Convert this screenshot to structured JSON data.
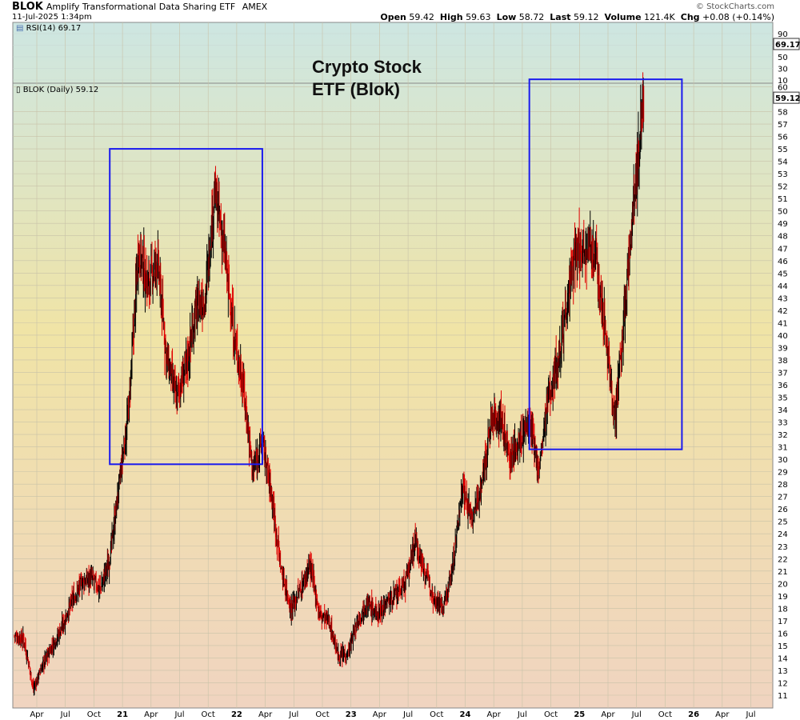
{
  "header": {
    "symbol": "BLOK",
    "name": "Amplify Transformational Data Sharing ETF",
    "exchange": "AMEX",
    "datetime": "11-Jul-2025 1:34pm",
    "brand": "© StockCharts.com",
    "open_label": "Open",
    "open": "59.42",
    "high_label": "High",
    "high": "59.63",
    "low_label": "Low",
    "low": "58.72",
    "last_label": "Last",
    "last": "59.12",
    "volume_label": "Volume",
    "volume": "121.4K",
    "chg_label": "Chg",
    "chg": "+0.08 (+0.14%)"
  },
  "indicators": {
    "rsi_label": "RSI(14) 69.17",
    "rsi_value": "69.17",
    "price_label": "BLOK (Daily) 59.12",
    "price_value": "59.12"
  },
  "annotation": {
    "line1": "Crypto Stock",
    "line2": "ETF (Blok)"
  },
  "colors": {
    "up": "#000000",
    "down": "#e00000",
    "box": "#1a1aee",
    "gradient_top": "#cde6e2",
    "gradient_mid": "#f0e4a6",
    "gradient_bottom": "#f0d4c0"
  },
  "chart_data": {
    "type": "line",
    "rsi_axis_ticks": [
      90,
      70,
      50,
      30,
      10
    ],
    "y_ticks": [
      11,
      12,
      13,
      14,
      15,
      16,
      17,
      18,
      19,
      20,
      21,
      22,
      23,
      24,
      25,
      26,
      27,
      28,
      29,
      30,
      31,
      32,
      33,
      34,
      35,
      36,
      37,
      38,
      39,
      40,
      41,
      42,
      43,
      44,
      45,
      46,
      47,
      48,
      49,
      50,
      51,
      52,
      53,
      54,
      55,
      56,
      57,
      58,
      60
    ],
    "x_ticks": [
      "Apr",
      "Jul",
      "Oct",
      "21",
      "Apr",
      "Jul",
      "Oct",
      "22",
      "Apr",
      "Jul",
      "Oct",
      "23",
      "Apr",
      "Jul",
      "Oct",
      "24",
      "Apr",
      "Jul",
      "Oct",
      "25",
      "Apr",
      "Jul",
      "Oct",
      "26",
      "Apr",
      "Jul"
    ],
    "x": [
      "2020-01",
      "2020-02",
      "2020-03",
      "2020-04",
      "2020-05",
      "2020-06",
      "2020-07",
      "2020-08",
      "2020-09",
      "2020-10",
      "2020-11",
      "2020-12",
      "2021-01",
      "2021-02",
      "2021-03",
      "2021-04",
      "2021-05",
      "2021-06",
      "2021-07",
      "2021-08",
      "2021-09",
      "2021-10",
      "2021-11",
      "2021-12",
      "2022-01",
      "2022-02",
      "2022-03",
      "2022-04",
      "2022-05",
      "2022-06",
      "2022-07",
      "2022-08",
      "2022-09",
      "2022-10",
      "2022-11",
      "2022-12",
      "2023-01",
      "2023-02",
      "2023-03",
      "2023-04",
      "2023-05",
      "2023-06",
      "2023-07",
      "2023-08",
      "2023-09",
      "2023-10",
      "2023-11",
      "2023-12",
      "2024-01",
      "2024-02",
      "2024-03",
      "2024-04",
      "2024-05",
      "2024-06",
      "2024-07",
      "2024-08",
      "2024-09",
      "2024-10",
      "2024-11",
      "2024-12",
      "2025-01",
      "2025-02",
      "2025-03",
      "2025-04",
      "2025-05",
      "2025-06",
      "2025-07"
    ],
    "series": [
      {
        "values": [
          15.8,
          15.5,
          11.5,
          13.5,
          15.0,
          16.5,
          18.5,
          20.0,
          20.5,
          19.5,
          22.0,
          28.0,
          34.0,
          47.0,
          44.0,
          46.0,
          38.0,
          35.0,
          37.5,
          42.0,
          43.0,
          51.5,
          47.0,
          40.0,
          36.0,
          29.0,
          31.5,
          27.0,
          21.0,
          18.0,
          19.5,
          21.5,
          17.5,
          17.0,
          14.0,
          14.5,
          17.0,
          18.5,
          17.5,
          18.5,
          19.0,
          20.0,
          23.5,
          21.0,
          19.0,
          18.0,
          21.5,
          28.0,
          25.0,
          28.0,
          33.0,
          33.5,
          30.0,
          31.5,
          33.0,
          29.0,
          35.0,
          38.0,
          43.0,
          47.0,
          47.5,
          46.0,
          40.0,
          33.0,
          42.0,
          51.0,
          59.12
        ]
      }
    ],
    "rect_annotations": [
      {
        "x0": "2020-11",
        "x1": "2022-03",
        "y0": 29.6,
        "y1": 55.0
      },
      {
        "x0": "2024-07",
        "x1": "2025-11",
        "y0": 30.8,
        "y1": 60.6
      }
    ]
  }
}
